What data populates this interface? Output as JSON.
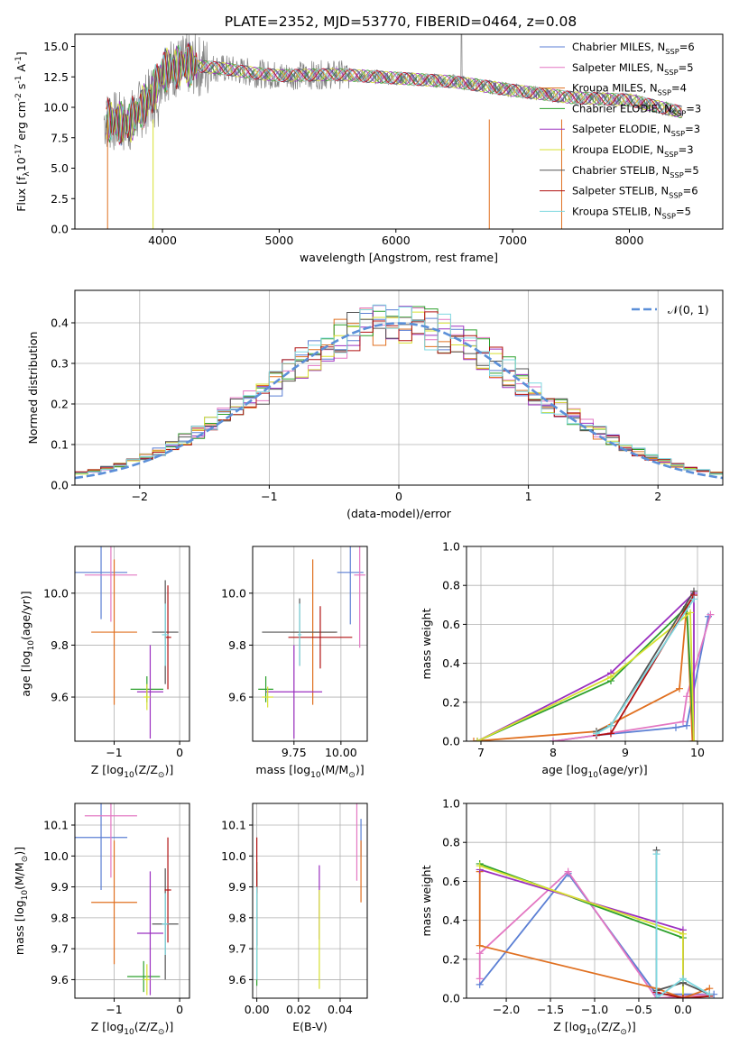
{
  "title": "PLATE=2352, MJD=53770, FIBERID=0464, z=0.08",
  "colors": {
    "Chabrier MILES": "#5b7fd4",
    "Salpeter MILES": "#e377c2",
    "Kroupa MILES": "#e07020",
    "Chabrier ELODIE": "#2ca02c",
    "Salpeter ELODIE": "#9b30c0",
    "Kroupa ELODIE": "#d7e030",
    "Chabrier STELIB": "#555555",
    "Salpeter STELIB": "#b01010",
    "Kroupa STELIB": "#7fd8e0"
  },
  "chart_data": [
    {
      "type": "line",
      "title": "PLATE=2352, MJD=53770, FIBERID=0464, z=0.08",
      "xlabel": "wavelength [Angstrom, rest frame]",
      "ylabel": "Flux [f$_\\lambda$10$^{-17}$ erg cm$^{-2}$ s$^{-1}$ A$^{-1}$]",
      "xlim": [
        3250,
        8800
      ],
      "ylim": [
        0,
        16
      ],
      "xticks": [
        "4000",
        "5000",
        "6000",
        "7000",
        "8000"
      ],
      "yticks": [
        "0.0",
        "2.5",
        "5.0",
        "7.5",
        "10.0",
        "12.5",
        "15.0"
      ],
      "legend_position": "top-right",
      "series": [
        {
          "name": "Chabrier MILES, N$_{SSP}$=6"
        },
        {
          "name": "Salpeter MILES, N$_{SSP}$=5"
        },
        {
          "name": "Kroupa MILES, N$_{SSP}$=4"
        },
        {
          "name": "Chabrier ELODIE, N$_{SSP}$=3"
        },
        {
          "name": "Salpeter ELODIE, N$_{SSP}$=3"
        },
        {
          "name": "Kroupa ELODIE, N$_{SSP}$=3"
        },
        {
          "name": "Chabrier STELIB, N$_{SSP}$=5"
        },
        {
          "name": "Salpeter STELIB, N$_{SSP}$=6"
        },
        {
          "name": "Kroupa STELIB, N$_{SSP}$=5"
        }
      ],
      "data_envelope": [
        [
          3500,
          9.0
        ],
        [
          3700,
          8.6
        ],
        [
          3900,
          10.8
        ],
        [
          4000,
          13.0
        ],
        [
          4200,
          13.5
        ],
        [
          4500,
          13.2
        ],
        [
          4800,
          12.8
        ],
        [
          5000,
          12.6
        ],
        [
          5500,
          12.7
        ],
        [
          6000,
          12.4
        ],
        [
          6500,
          12.1
        ],
        [
          7000,
          11.4
        ],
        [
          7500,
          10.8
        ],
        [
          8000,
          10.6
        ],
        [
          8450,
          9.6
        ]
      ],
      "grid": false
    },
    {
      "type": "step",
      "xlabel": "(data-model)/error",
      "ylabel": "Normed distribution",
      "xlim": [
        -2.5,
        2.5
      ],
      "ylim": [
        0,
        0.48
      ],
      "xticks": [
        "−2",
        "−1",
        "0",
        "1",
        "2"
      ],
      "yticks": [
        "0.0",
        "0.1",
        "0.2",
        "0.3",
        "0.4"
      ],
      "legend": "$\\mathcal{N}(0,1)$",
      "legend_position": "top-right",
      "reference_curve": "normal pdf, mean 0, sigma 1",
      "bin_width": 0.1,
      "grid": true
    },
    {
      "type": "scatter",
      "xlabel": "Z [log$_{10}$(Z/Z$_\\odot$)]",
      "ylabel": "age  [log$_{10}$(age/yr)]",
      "xlim": [
        -1.6,
        0.15
      ],
      "ylim": [
        9.43,
        10.18
      ],
      "xticks": [
        "−1",
        "0"
      ],
      "yticks": [
        "9.6",
        "9.8",
        "10.0"
      ],
      "points": [
        {
          "model": "Chabrier MILES",
          "x": -1.2,
          "xerr": 0.4,
          "y": 10.08,
          "yerr": 0.18
        },
        {
          "model": "Salpeter MILES",
          "x": -1.05,
          "xerr": 0.4,
          "y": 10.07,
          "yerr": 0.18
        },
        {
          "model": "Kroupa MILES",
          "x": -1.0,
          "xerr": 0.35,
          "y": 9.85,
          "yerr": 0.28
        },
        {
          "model": "Chabrier ELODIE",
          "x": -0.5,
          "xerr": 0.25,
          "y": 9.63,
          "yerr": 0.05
        },
        {
          "model": "Salpeter ELODIE",
          "x": -0.45,
          "xerr": 0.2,
          "y": 9.62,
          "yerr": 0.18
        },
        {
          "model": "Kroupa ELODIE",
          "x": -0.5,
          "xerr": 0.05,
          "y": 9.6,
          "yerr": 0.05
        },
        {
          "model": "Chabrier STELIB",
          "x": -0.22,
          "xerr": 0.2,
          "y": 9.85,
          "yerr": 0.2
        },
        {
          "model": "Salpeter STELIB",
          "x": -0.18,
          "xerr": 0.05,
          "y": 9.83,
          "yerr": 0.2
        },
        {
          "model": "Kroupa STELIB",
          "x": -0.22,
          "xerr": 0.05,
          "y": 9.84,
          "yerr": 0.12
        }
      ],
      "grid": true
    },
    {
      "type": "scatter",
      "xlabel": "mass [log$_{10}$(M/M$_\\odot$)]",
      "ylabel": "",
      "xlim": [
        9.53,
        10.14
      ],
      "ylim": [
        9.43,
        10.18
      ],
      "xticks": [
        "9.75",
        "10.00"
      ],
      "yticks": [
        "9.6",
        "9.8",
        "10.0"
      ],
      "points": [
        {
          "model": "Chabrier MILES",
          "x": 10.05,
          "xerr": 0.07,
          "y": 10.08,
          "yerr": 0.2
        },
        {
          "model": "Salpeter MILES",
          "x": 10.1,
          "xerr": 0.03,
          "y": 10.07,
          "yerr": 0.28
        },
        {
          "model": "Kroupa MILES",
          "x": 9.85,
          "xerr": 0.12,
          "y": 9.85,
          "yerr": 0.28
        },
        {
          "model": "Chabrier ELODIE",
          "x": 9.6,
          "xerr": 0.04,
          "y": 9.63,
          "yerr": 0.05
        },
        {
          "model": "Salpeter ELODIE",
          "x": 9.75,
          "xerr": 0.15,
          "y": 9.62,
          "yerr": 0.18
        },
        {
          "model": "Kroupa ELODIE",
          "x": 9.61,
          "xerr": 0.03,
          "y": 9.6,
          "yerr": 0.04
        },
        {
          "model": "Chabrier STELIB",
          "x": 9.78,
          "xerr": 0.2,
          "y": 9.85,
          "yerr": 0.13
        },
        {
          "model": "Salpeter STELIB",
          "x": 9.89,
          "xerr": 0.17,
          "y": 9.83,
          "yerr": 0.12
        },
        {
          "model": "Kroupa STELIB",
          "x": 9.78,
          "xerr": 0.01,
          "y": 9.84,
          "yerr": 0.12
        }
      ],
      "grid": true
    },
    {
      "type": "line",
      "xlabel": "age  [log$_{10}$(age/yr)]",
      "ylabel": "mass weight",
      "xlim": [
        6.8,
        10.35
      ],
      "ylim": [
        0,
        1
      ],
      "xticks": [
        "7",
        "8",
        "9",
        "10"
      ],
      "yticks": [
        "0.0",
        "0.2",
        "0.4",
        "0.6",
        "0.8",
        "1.0"
      ],
      "series": [
        {
          "model": "Chabrier MILES",
          "points": [
            [
              8.0,
              0.0
            ],
            [
              8.6,
              0.03
            ],
            [
              9.7,
              0.07
            ],
            [
              9.85,
              0.08
            ],
            [
              10.15,
              0.64
            ]
          ]
        },
        {
          "model": "Salpeter MILES",
          "points": [
            [
              8.0,
              0.0
            ],
            [
              8.6,
              0.03
            ],
            [
              9.8,
              0.1
            ],
            [
              9.85,
              0.23
            ],
            [
              10.18,
              0.65
            ]
          ]
        },
        {
          "model": "Kroupa MILES",
          "points": [
            [
              6.9,
              0.0
            ],
            [
              8.6,
              0.05
            ],
            [
              9.75,
              0.27
            ],
            [
              9.85,
              0.69
            ],
            [
              9.93,
              0.0
            ]
          ]
        },
        {
          "model": "Chabrier ELODIE",
          "points": [
            [
              6.95,
              0.0
            ],
            [
              8.8,
              0.31
            ],
            [
              9.85,
              0.69
            ],
            [
              9.95,
              0.0
            ]
          ]
        },
        {
          "model": "Salpeter ELODIE",
          "points": [
            [
              6.95,
              0.0
            ],
            [
              8.8,
              0.35
            ],
            [
              9.95,
              0.76
            ],
            [
              9.95,
              0.0
            ]
          ]
        },
        {
          "model": "Kroupa ELODIE",
          "points": [
            [
              6.95,
              0.0
            ],
            [
              8.8,
              0.33
            ],
            [
              9.9,
              0.66
            ],
            [
              9.95,
              0.0
            ]
          ]
        },
        {
          "model": "Chabrier STELIB",
          "points": [
            [
              8.6,
              0.05
            ],
            [
              8.8,
              0.08
            ],
            [
              9.95,
              0.77
            ]
          ]
        },
        {
          "model": "Salpeter STELIB",
          "points": [
            [
              8.6,
              0.03
            ],
            [
              8.8,
              0.04
            ],
            [
              9.95,
              0.75
            ]
          ]
        },
        {
          "model": "Kroupa STELIB",
          "points": [
            [
              8.6,
              0.04
            ],
            [
              8.8,
              0.08
            ],
            [
              9.95,
              0.73
            ]
          ]
        }
      ],
      "grid": true
    },
    {
      "type": "scatter",
      "xlabel": "Z [log$_{10}$(Z/Z$_\\odot$)]",
      "ylabel": "mass [log$_{10}$(M/M$_\\odot$)]",
      "xlim": [
        -1.6,
        0.15
      ],
      "ylim": [
        9.54,
        10.17
      ],
      "xticks": [
        "−1",
        "0"
      ],
      "yticks": [
        "9.6",
        "9.7",
        "9.8",
        "9.9",
        "10.0",
        "10.1"
      ],
      "points": [
        {
          "model": "Chabrier MILES",
          "x": -1.2,
          "xerr": 0.4,
          "y": 10.06,
          "yerr": 0.17
        },
        {
          "model": "Salpeter MILES",
          "x": -1.05,
          "xerr": 0.4,
          "y": 10.13,
          "yerr": 0.2
        },
        {
          "model": "Kroupa MILES",
          "x": -1.0,
          "xerr": 0.35,
          "y": 9.85,
          "yerr": 0.2
        },
        {
          "model": "Chabrier ELODIE",
          "x": -0.55,
          "xerr": 0.25,
          "y": 9.61,
          "yerr": 0.05
        },
        {
          "model": "Salpeter ELODIE",
          "x": -0.45,
          "xerr": 0.2,
          "y": 9.75,
          "yerr": 0.2
        },
        {
          "model": "Kroupa ELODIE",
          "x": -0.5,
          "xerr": 0.05,
          "y": 9.6,
          "yerr": 0.05
        },
        {
          "model": "Chabrier STELIB",
          "x": -0.22,
          "xerr": 0.2,
          "y": 9.78,
          "yerr": 0.18
        },
        {
          "model": "Salpeter STELIB",
          "x": -0.18,
          "xerr": 0.05,
          "y": 9.89,
          "yerr": 0.17
        },
        {
          "model": "Kroupa STELIB",
          "x": -0.22,
          "xerr": 0.05,
          "y": 9.78,
          "yerr": 0.1
        }
      ],
      "grid": true
    },
    {
      "type": "scatter",
      "xlabel": "E(B-V)",
      "ylabel": "",
      "xlim": [
        -0.002,
        0.053
      ],
      "ylim": [
        9.54,
        10.17
      ],
      "xticks": [
        "0.00",
        "0.02",
        "0.04"
      ],
      "yticks": [
        "9.6",
        "9.7",
        "9.8",
        "9.9",
        "10.0",
        "10.1"
      ],
      "points": [
        {
          "model": "Chabrier MILES",
          "x": 0.05,
          "y": 10.06,
          "yerr": 0.06
        },
        {
          "model": "Salpeter MILES",
          "x": 0.048,
          "y": 10.05,
          "yerr": 0.13
        },
        {
          "model": "Kroupa MILES",
          "x": 0.05,
          "y": 9.95,
          "yerr": 0.1
        },
        {
          "model": "Chabrier ELODIE",
          "x": 0.0,
          "y": 9.78,
          "yerr": 0.2
        },
        {
          "model": "Salpeter ELODIE",
          "x": 0.03,
          "y": 9.85,
          "yerr": 0.12
        },
        {
          "model": "Kroupa ELODIE",
          "x": 0.03,
          "y": 9.73,
          "yerr": 0.16
        },
        {
          "model": "Chabrier STELIB",
          "x": 0.0,
          "y": 9.83,
          "yerr": 0.12
        },
        {
          "model": "Salpeter STELIB",
          "x": 0.0,
          "y": 9.97,
          "yerr": 0.09
        },
        {
          "model": "Kroupa STELIB",
          "x": 0.0,
          "y": 9.75,
          "yerr": 0.15
        }
      ],
      "grid": true
    },
    {
      "type": "line",
      "xlabel": "Z [log$_{10}$(Z/Z$_\\odot$)]",
      "ylabel": "mass weight",
      "xlim": [
        -2.45,
        0.45
      ],
      "ylim": [
        0,
        1
      ],
      "xticks": [
        "−2.0",
        "−1.5",
        "−1.0",
        "−0.5",
        "0.0"
      ],
      "yticks": [
        "0.0",
        "0.2",
        "0.4",
        "0.6",
        "0.8",
        "1.0"
      ],
      "series": [
        {
          "model": "Chabrier MILES",
          "points": [
            [
              -2.3,
              0.07
            ],
            [
              -1.3,
              0.64
            ],
            [
              -0.3,
              0.02
            ],
            [
              0.35,
              0.02
            ]
          ]
        },
        {
          "model": "Salpeter MILES",
          "points": [
            [
              -2.3,
              0.1
            ],
            [
              -2.3,
              0.23
            ],
            [
              -1.3,
              0.65
            ],
            [
              -0.3,
              0.0
            ],
            [
              0.3,
              0.02
            ]
          ]
        },
        {
          "model": "Kroupa MILES",
          "points": [
            [
              -2.3,
              0.65
            ],
            [
              -2.3,
              0.27
            ],
            [
              -0.3,
              0.05
            ],
            [
              0.0,
              0.0
            ],
            [
              0.3,
              0.05
            ]
          ]
        },
        {
          "model": "Chabrier ELODIE",
          "points": [
            [
              -2.3,
              0.69
            ],
            [
              0.0,
              0.31
            ],
            [
              0.0,
              0.0
            ]
          ]
        },
        {
          "model": "Salpeter ELODIE",
          "points": [
            [
              -2.3,
              0.66
            ],
            [
              0.0,
              0.35
            ],
            [
              0.0,
              0.0
            ]
          ]
        },
        {
          "model": "Kroupa ELODIE",
          "points": [
            [
              -2.3,
              0.68
            ],
            [
              0.0,
              0.33
            ],
            [
              0.0,
              0.0
            ]
          ]
        },
        {
          "model": "Chabrier STELIB",
          "points": [
            [
              -0.3,
              0.76
            ],
            [
              -0.3,
              0.04
            ],
            [
              0.0,
              0.08
            ],
            [
              0.3,
              0.02
            ]
          ]
        },
        {
          "model": "Salpeter STELIB",
          "points": [
            [
              -0.3,
              0.03
            ],
            [
              0.0,
              0.0
            ],
            [
              0.3,
              0.01
            ]
          ]
        },
        {
          "model": "Kroupa STELIB",
          "points": [
            [
              -0.3,
              0.74
            ],
            [
              -0.3,
              0.0
            ],
            [
              0.0,
              0.1
            ],
            [
              0.3,
              0.02
            ]
          ]
        }
      ],
      "grid": true
    }
  ]
}
